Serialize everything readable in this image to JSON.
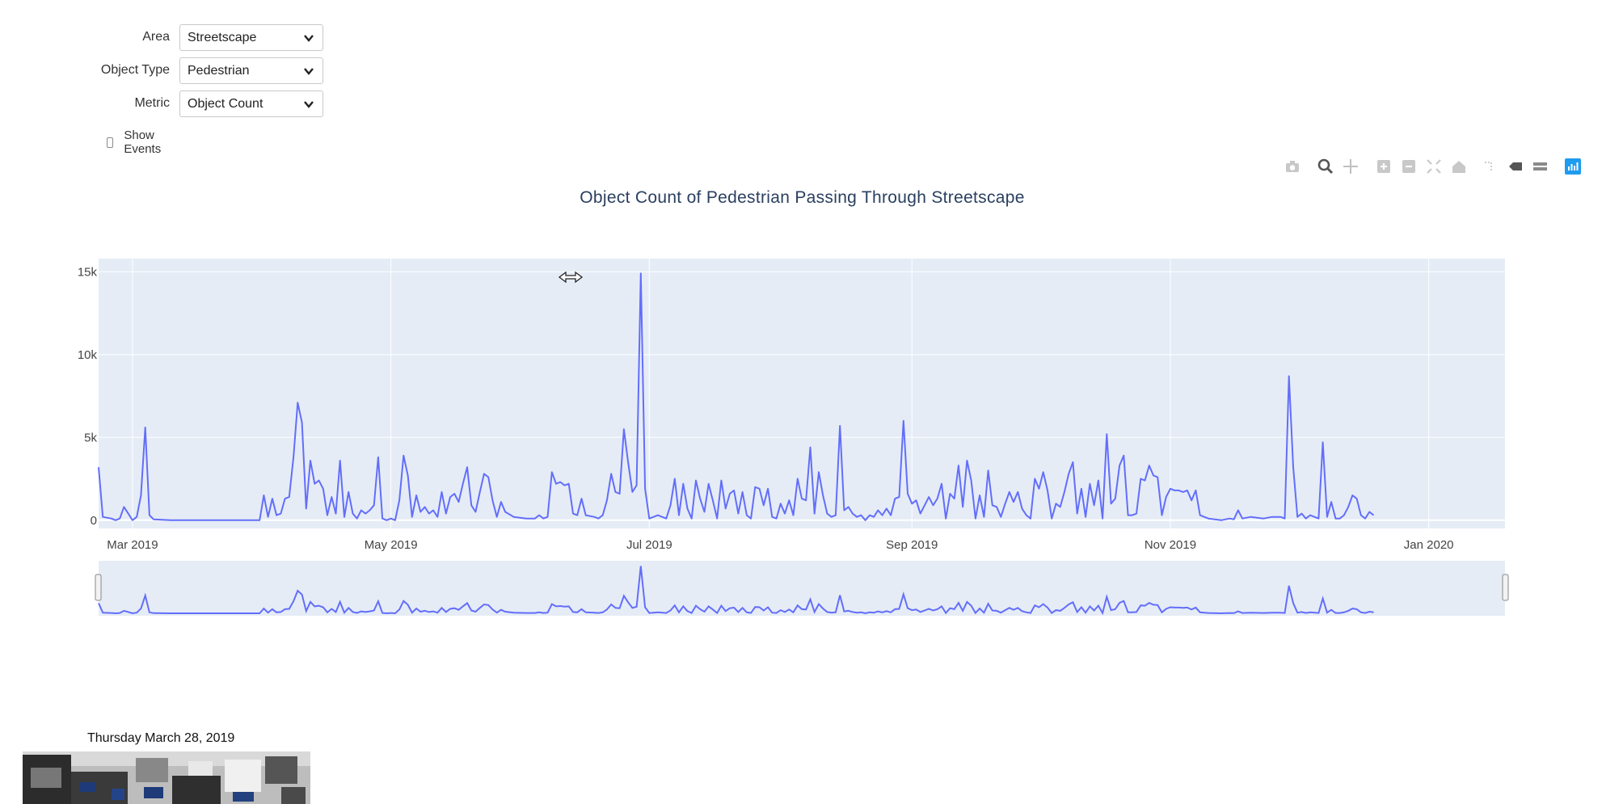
{
  "filters": {
    "area": {
      "label": "Area",
      "value": "Streetscape"
    },
    "object_type": {
      "label": "Object Type",
      "value": "Pedestrian"
    },
    "metric": {
      "label": "Metric",
      "value": "Object Count"
    },
    "show_events": {
      "label": "Show Events",
      "checked": false
    }
  },
  "modebar": {
    "icons": [
      "camera-icon",
      "zoom-icon",
      "pan-icon",
      "zoom-in-icon",
      "zoom-out-icon",
      "autoscale-icon",
      "reset-axes-icon",
      "spike-lines-icon",
      "hover-closest-icon",
      "hover-compare-icon",
      "plotly-logo-icon"
    ]
  },
  "colors": {
    "line": "#636efa",
    "plot_bg": "#e5ecf6",
    "grid": "#ffffff",
    "accent": "#1f9bf0"
  },
  "snapshot": {
    "date_caption": "Thursday March 28, 2019"
  },
  "chart_data": {
    "type": "line",
    "title": "Object Count of Pedestrian Passing Through Streetscape",
    "xlabel": "",
    "ylabel": "",
    "x_range": [
      "2019-02-21",
      "2020-01-19"
    ],
    "ylim": [
      -500,
      15800
    ],
    "x_ticks": [
      "2019-03-01",
      "2019-05-01",
      "2019-07-01",
      "2019-09-01",
      "2019-11-01",
      "2020-01-01"
    ],
    "x_tick_labels": [
      "Mar 2019",
      "May 2019",
      "Jul 2019",
      "Sep 2019",
      "Nov 2019",
      "Jan 2020"
    ],
    "y_ticks": [
      0,
      5000,
      10000,
      15000
    ],
    "y_tick_labels": [
      "0",
      "5k",
      "10k",
      "15k"
    ],
    "grid": true,
    "rangeslider": true,
    "series": [
      {
        "points": [
          [
            "2019-02-21",
            3200
          ],
          [
            "2019-02-22",
            200
          ],
          [
            "2019-02-24",
            100
          ],
          [
            "2019-02-25",
            0
          ],
          [
            "2019-02-26",
            100
          ],
          [
            "2019-02-27",
            800
          ],
          [
            "2019-02-28",
            400
          ],
          [
            "2019-03-01",
            0
          ],
          [
            "2019-03-02",
            200
          ],
          [
            "2019-03-03",
            1500
          ],
          [
            "2019-03-04",
            5600
          ],
          [
            "2019-03-05",
            300
          ],
          [
            "2019-03-06",
            50
          ],
          [
            "2019-03-10",
            0
          ],
          [
            "2019-03-31",
            0
          ],
          [
            "2019-04-01",
            1500
          ],
          [
            "2019-04-02",
            200
          ],
          [
            "2019-04-03",
            1300
          ],
          [
            "2019-04-04",
            300
          ],
          [
            "2019-04-05",
            400
          ],
          [
            "2019-04-06",
            1300
          ],
          [
            "2019-04-07",
            1400
          ],
          [
            "2019-04-08",
            3800
          ],
          [
            "2019-04-09",
            7100
          ],
          [
            "2019-04-10",
            5900
          ],
          [
            "2019-04-11",
            700
          ],
          [
            "2019-04-12",
            3600
          ],
          [
            "2019-04-13",
            2200
          ],
          [
            "2019-04-14",
            2400
          ],
          [
            "2019-04-15",
            1900
          ],
          [
            "2019-04-16",
            300
          ],
          [
            "2019-04-17",
            1400
          ],
          [
            "2019-04-18",
            400
          ],
          [
            "2019-04-19",
            3600
          ],
          [
            "2019-04-20",
            200
          ],
          [
            "2019-04-21",
            1700
          ],
          [
            "2019-04-22",
            400
          ],
          [
            "2019-04-23",
            100
          ],
          [
            "2019-04-24",
            600
          ],
          [
            "2019-04-25",
            400
          ],
          [
            "2019-04-26",
            600
          ],
          [
            "2019-04-27",
            900
          ],
          [
            "2019-04-28",
            3800
          ],
          [
            "2019-04-29",
            100
          ],
          [
            "2019-04-30",
            0
          ],
          [
            "2019-05-01",
            100
          ],
          [
            "2019-05-02",
            0
          ],
          [
            "2019-05-03",
            1200
          ],
          [
            "2019-05-04",
            3900
          ],
          [
            "2019-05-05",
            2700
          ],
          [
            "2019-05-06",
            200
          ],
          [
            "2019-05-07",
            1500
          ],
          [
            "2019-05-08",
            500
          ],
          [
            "2019-05-09",
            800
          ],
          [
            "2019-05-10",
            400
          ],
          [
            "2019-05-11",
            600
          ],
          [
            "2019-05-12",
            200
          ],
          [
            "2019-05-13",
            1700
          ],
          [
            "2019-05-14",
            400
          ],
          [
            "2019-05-15",
            1400
          ],
          [
            "2019-05-16",
            1600
          ],
          [
            "2019-05-17",
            1100
          ],
          [
            "2019-05-18",
            2200
          ],
          [
            "2019-05-19",
            3200
          ],
          [
            "2019-05-20",
            900
          ],
          [
            "2019-05-21",
            500
          ],
          [
            "2019-05-22",
            1700
          ],
          [
            "2019-05-23",
            2800
          ],
          [
            "2019-05-24",
            2600
          ],
          [
            "2019-05-25",
            1200
          ],
          [
            "2019-05-26",
            200
          ],
          [
            "2019-05-27",
            1100
          ],
          [
            "2019-05-28",
            500
          ],
          [
            "2019-05-30",
            200
          ],
          [
            "2019-06-02",
            100
          ],
          [
            "2019-06-04",
            100
          ],
          [
            "2019-06-05",
            300
          ],
          [
            "2019-06-06",
            100
          ],
          [
            "2019-06-07",
            200
          ],
          [
            "2019-06-08",
            2900
          ],
          [
            "2019-06-09",
            2200
          ],
          [
            "2019-06-10",
            2300
          ],
          [
            "2019-06-11",
            2100
          ],
          [
            "2019-06-12",
            2200
          ],
          [
            "2019-06-13",
            400
          ],
          [
            "2019-06-14",
            300
          ],
          [
            "2019-06-15",
            1300
          ],
          [
            "2019-06-16",
            300
          ],
          [
            "2019-06-18",
            200
          ],
          [
            "2019-06-19",
            100
          ],
          [
            "2019-06-20",
            300
          ],
          [
            "2019-06-21",
            1200
          ],
          [
            "2019-06-22",
            2800
          ],
          [
            "2019-06-23",
            1700
          ],
          [
            "2019-06-24",
            1600
          ],
          [
            "2019-06-25",
            5500
          ],
          [
            "2019-06-26",
            3500
          ],
          [
            "2019-06-27",
            1700
          ],
          [
            "2019-06-28",
            2100
          ],
          [
            "2019-06-29",
            14900
          ],
          [
            "2019-06-30",
            1900
          ],
          [
            "2019-07-01",
            100
          ],
          [
            "2019-07-02",
            200
          ],
          [
            "2019-07-03",
            300
          ],
          [
            "2019-07-05",
            100
          ],
          [
            "2019-07-06",
            900
          ],
          [
            "2019-07-07",
            2500
          ],
          [
            "2019-07-08",
            300
          ],
          [
            "2019-07-09",
            2200
          ],
          [
            "2019-07-10",
            700
          ],
          [
            "2019-07-11",
            100
          ],
          [
            "2019-07-12",
            2400
          ],
          [
            "2019-07-13",
            1300
          ],
          [
            "2019-07-14",
            500
          ],
          [
            "2019-07-15",
            2200
          ],
          [
            "2019-07-16",
            1200
          ],
          [
            "2019-07-17",
            100
          ],
          [
            "2019-07-18",
            2400
          ],
          [
            "2019-07-19",
            700
          ],
          [
            "2019-07-20",
            1600
          ],
          [
            "2019-07-21",
            1800
          ],
          [
            "2019-07-22",
            400
          ],
          [
            "2019-07-23",
            1700
          ],
          [
            "2019-07-24",
            300
          ],
          [
            "2019-07-25",
            100
          ],
          [
            "2019-07-26",
            2000
          ],
          [
            "2019-07-27",
            1900
          ],
          [
            "2019-07-28",
            900
          ],
          [
            "2019-07-29",
            1900
          ],
          [
            "2019-07-30",
            200
          ],
          [
            "2019-07-31",
            100
          ],
          [
            "2019-08-01",
            1000
          ],
          [
            "2019-08-02",
            400
          ],
          [
            "2019-08-03",
            1200
          ],
          [
            "2019-08-04",
            300
          ],
          [
            "2019-08-05",
            2500
          ],
          [
            "2019-08-06",
            1300
          ],
          [
            "2019-08-07",
            1200
          ],
          [
            "2019-08-08",
            4400
          ],
          [
            "2019-08-09",
            400
          ],
          [
            "2019-08-10",
            2900
          ],
          [
            "2019-08-11",
            1500
          ],
          [
            "2019-08-12",
            400
          ],
          [
            "2019-08-13",
            200
          ],
          [
            "2019-08-14",
            300
          ],
          [
            "2019-08-15",
            5700
          ],
          [
            "2019-08-16",
            600
          ],
          [
            "2019-08-17",
            800
          ],
          [
            "2019-08-18",
            400
          ],
          [
            "2019-08-19",
            200
          ],
          [
            "2019-08-20",
            300
          ],
          [
            "2019-08-21",
            0
          ],
          [
            "2019-08-22",
            300
          ],
          [
            "2019-08-23",
            200
          ],
          [
            "2019-08-24",
            600
          ],
          [
            "2019-08-25",
            300
          ],
          [
            "2019-08-26",
            700
          ],
          [
            "2019-08-27",
            300
          ],
          [
            "2019-08-28",
            1300
          ],
          [
            "2019-08-29",
            1400
          ],
          [
            "2019-08-30",
            6000
          ],
          [
            "2019-08-31",
            1600
          ],
          [
            "2019-09-01",
            1000
          ],
          [
            "2019-09-02",
            1200
          ],
          [
            "2019-09-03",
            400
          ],
          [
            "2019-09-04",
            900
          ],
          [
            "2019-09-05",
            1400
          ],
          [
            "2019-09-06",
            900
          ],
          [
            "2019-09-07",
            1300
          ],
          [
            "2019-09-08",
            2200
          ],
          [
            "2019-09-09",
            100
          ],
          [
            "2019-09-10",
            1600
          ],
          [
            "2019-09-11",
            1300
          ],
          [
            "2019-09-12",
            3300
          ],
          [
            "2019-09-13",
            800
          ],
          [
            "2019-09-14",
            3600
          ],
          [
            "2019-09-15",
            2400
          ],
          [
            "2019-09-16",
            100
          ],
          [
            "2019-09-17",
            1500
          ],
          [
            "2019-09-18",
            200
          ],
          [
            "2019-09-19",
            3000
          ],
          [
            "2019-09-20",
            900
          ],
          [
            "2019-09-21",
            800
          ],
          [
            "2019-09-22",
            200
          ],
          [
            "2019-09-23",
            1000
          ],
          [
            "2019-09-24",
            1700
          ],
          [
            "2019-09-25",
            1100
          ],
          [
            "2019-09-26",
            1700
          ],
          [
            "2019-09-27",
            700
          ],
          [
            "2019-09-28",
            300
          ],
          [
            "2019-09-29",
            100
          ],
          [
            "2019-09-30",
            2500
          ],
          [
            "2019-10-01",
            1900
          ],
          [
            "2019-10-02",
            2900
          ],
          [
            "2019-10-03",
            1800
          ],
          [
            "2019-10-04",
            100
          ],
          [
            "2019-10-05",
            1000
          ],
          [
            "2019-10-06",
            800
          ],
          [
            "2019-10-07",
            1700
          ],
          [
            "2019-10-08",
            2800
          ],
          [
            "2019-10-09",
            3500
          ],
          [
            "2019-10-10",
            400
          ],
          [
            "2019-10-11",
            1900
          ],
          [
            "2019-10-12",
            200
          ],
          [
            "2019-10-13",
            2200
          ],
          [
            "2019-10-14",
            900
          ],
          [
            "2019-10-15",
            2400
          ],
          [
            "2019-10-16",
            100
          ],
          [
            "2019-10-17",
            5200
          ],
          [
            "2019-10-18",
            1000
          ],
          [
            "2019-10-19",
            1300
          ],
          [
            "2019-10-20",
            3300
          ],
          [
            "2019-10-21",
            3900
          ],
          [
            "2019-10-22",
            300
          ],
          [
            "2019-10-23",
            300
          ],
          [
            "2019-10-24",
            400
          ],
          [
            "2019-10-25",
            2500
          ],
          [
            "2019-10-26",
            2400
          ],
          [
            "2019-10-27",
            3300
          ],
          [
            "2019-10-28",
            2700
          ],
          [
            "2019-10-29",
            2600
          ],
          [
            "2019-10-30",
            300
          ],
          [
            "2019-10-31",
            1400
          ],
          [
            "2019-11-01",
            1900
          ],
          [
            "2019-11-02",
            1800
          ],
          [
            "2019-11-03",
            1800
          ],
          [
            "2019-11-04",
            1700
          ],
          [
            "2019-11-05",
            1800
          ],
          [
            "2019-11-06",
            1200
          ],
          [
            "2019-11-07",
            1800
          ],
          [
            "2019-11-08",
            300
          ],
          [
            "2019-11-09",
            200
          ],
          [
            "2019-11-10",
            100
          ],
          [
            "2019-11-13",
            0
          ],
          [
            "2019-11-15",
            100
          ],
          [
            "2019-11-16",
            50
          ],
          [
            "2019-11-17",
            600
          ],
          [
            "2019-11-18",
            100
          ],
          [
            "2019-11-20",
            200
          ],
          [
            "2019-11-23",
            100
          ],
          [
            "2019-11-25",
            200
          ],
          [
            "2019-11-27",
            200
          ],
          [
            "2019-11-28",
            100
          ],
          [
            "2019-11-29",
            8700
          ],
          [
            "2019-11-30",
            3200
          ],
          [
            "2019-12-01",
            200
          ],
          [
            "2019-12-02",
            400
          ],
          [
            "2019-12-03",
            100
          ],
          [
            "2019-12-04",
            300
          ],
          [
            "2019-12-06",
            100
          ],
          [
            "2019-12-07",
            4700
          ],
          [
            "2019-12-08",
            200
          ],
          [
            "2019-12-09",
            1100
          ],
          [
            "2019-12-10",
            100
          ],
          [
            "2019-12-11",
            100
          ],
          [
            "2019-12-12",
            300
          ],
          [
            "2019-12-13",
            800
          ],
          [
            "2019-12-14",
            1500
          ],
          [
            "2019-12-15",
            1300
          ],
          [
            "2019-12-16",
            300
          ],
          [
            "2019-12-17",
            100
          ],
          [
            "2019-12-18",
            500
          ],
          [
            "2019-12-19",
            300
          ]
        ]
      }
    ]
  }
}
